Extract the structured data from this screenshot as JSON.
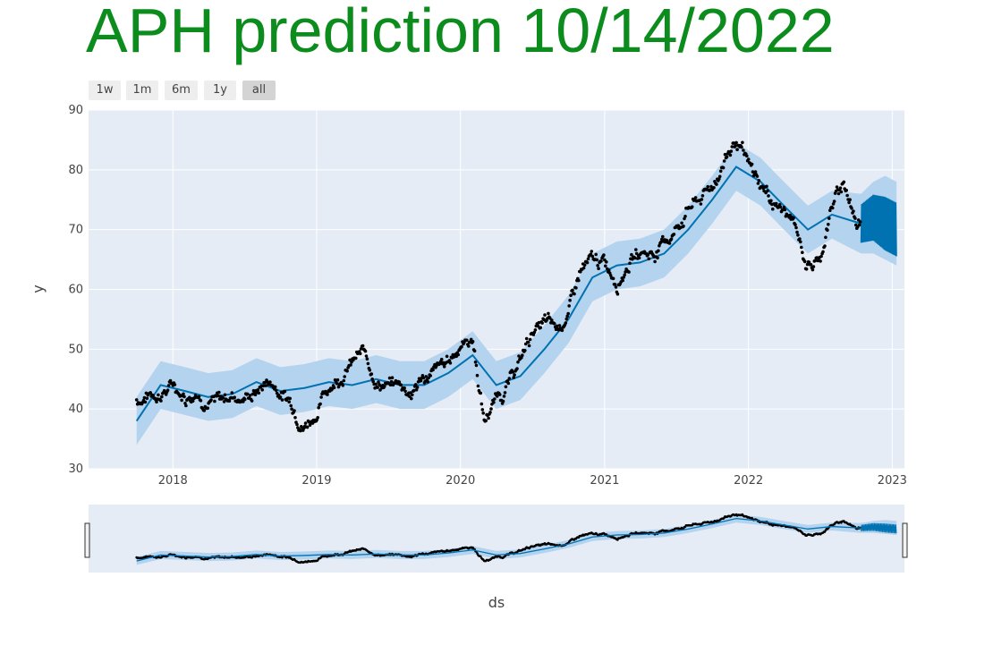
{
  "title": "APH prediction 10/14/2022",
  "range_buttons": [
    {
      "label": "1w",
      "active": false
    },
    {
      "label": "1m",
      "active": false
    },
    {
      "label": "6m",
      "active": false
    },
    {
      "label": "1y",
      "active": false
    },
    {
      "label": "all",
      "active": true
    }
  ],
  "colors": {
    "title": "#0d8c1e",
    "plot_bg": "#e5ecf6",
    "grid": "#ffffff",
    "forecast_line": "#0072b2",
    "uncertainty_band": "#b3d3ee",
    "observed_points": "#000000"
  },
  "chart_data": {
    "type": "scatter",
    "title": "APH prediction 10/14/2022",
    "xlabel": "ds",
    "ylabel": "y",
    "x_ticks": [
      "2018",
      "2019",
      "2020",
      "2021",
      "2022",
      "2023"
    ],
    "y_ticks": [
      30,
      40,
      50,
      60,
      70,
      80,
      90
    ],
    "xlim": [
      "2017-06-01",
      "2023-02-01"
    ],
    "ylim": [
      30,
      90
    ],
    "grid": true,
    "legend": "none",
    "range_slider": true,
    "forecast_start": "2022-10-14",
    "forecast_end": "2023-01-12",
    "observed": {
      "x": [
        "2017-10-01",
        "2017-11-01",
        "2017-12-01",
        "2018-01-01",
        "2018-02-01",
        "2018-03-01",
        "2018-04-01",
        "2018-05-01",
        "2018-06-01",
        "2018-07-01",
        "2018-08-01",
        "2018-09-01",
        "2018-10-01",
        "2018-11-01",
        "2018-12-01",
        "2019-01-01",
        "2019-02-01",
        "2019-03-01",
        "2019-04-01",
        "2019-05-01",
        "2019-06-01",
        "2019-07-01",
        "2019-08-01",
        "2019-09-01",
        "2019-10-01",
        "2019-11-01",
        "2019-12-01",
        "2020-01-01",
        "2020-02-01",
        "2020-03-01",
        "2020-04-01",
        "2020-05-01",
        "2020-06-01",
        "2020-07-01",
        "2020-08-01",
        "2020-09-01",
        "2020-10-01",
        "2020-11-01",
        "2020-12-01",
        "2021-01-01",
        "2021-02-01",
        "2021-03-01",
        "2021-04-01",
        "2021-05-01",
        "2021-06-01",
        "2021-07-01",
        "2021-08-01",
        "2021-09-01",
        "2021-10-01",
        "2021-11-01",
        "2021-12-01",
        "2022-01-01",
        "2022-02-01",
        "2022-03-01",
        "2022-04-01",
        "2022-05-01",
        "2022-06-01",
        "2022-07-01",
        "2022-08-01",
        "2022-09-01",
        "2022-10-01",
        "2022-10-14"
      ],
      "y": [
        41.5,
        42.5,
        43,
        44,
        42.5,
        43.5,
        42,
        41,
        42.5,
        42,
        43,
        45,
        43,
        41,
        38,
        40,
        44,
        46,
        48,
        49,
        45,
        44,
        44,
        43,
        45.5,
        46,
        47.5,
        51,
        52,
        38,
        42,
        44,
        48,
        53,
        54,
        53,
        56,
        63,
        64,
        64,
        62,
        65,
        66.5,
        66,
        68,
        70,
        74,
        75,
        77,
        82,
        85,
        80,
        77,
        75,
        73,
        70,
        64,
        65,
        74,
        78,
        71,
        72
      ]
    },
    "forecast": {
      "x": [
        "2017-10-01",
        "2017-12-01",
        "2018-02-01",
        "2018-04-01",
        "2018-06-01",
        "2018-08-01",
        "2018-10-01",
        "2018-12-01",
        "2019-02-01",
        "2019-04-01",
        "2019-06-01",
        "2019-08-01",
        "2019-10-01",
        "2019-12-01",
        "2020-02-01",
        "2020-04-01",
        "2020-06-01",
        "2020-08-01",
        "2020-10-01",
        "2020-12-01",
        "2021-02-01",
        "2021-04-01",
        "2021-06-01",
        "2021-08-01",
        "2021-10-01",
        "2021-12-01",
        "2022-02-01",
        "2022-04-01",
        "2022-06-01",
        "2022-08-01",
        "2022-10-14",
        "2022-11-14",
        "2022-12-14",
        "2023-01-12"
      ],
      "yhat": [
        38,
        44,
        43,
        42,
        42.5,
        44.5,
        43,
        43.5,
        44.5,
        44,
        45,
        44,
        44,
        46,
        49,
        44,
        45.5,
        50,
        55,
        62,
        64,
        64.5,
        66,
        70,
        75,
        80.5,
        78,
        74,
        70,
        72.5,
        71,
        72,
        71,
        70
      ],
      "yhat_lower": [
        34,
        40,
        39,
        38,
        38.5,
        40.5,
        39,
        39.5,
        40.5,
        40,
        41,
        40,
        40,
        42,
        45,
        40,
        41.5,
        46,
        51,
        58,
        60,
        60.5,
        62,
        66,
        71,
        76.5,
        74,
        70,
        66,
        68.5,
        66,
        66,
        65,
        64
      ],
      "yhat_upper": [
        42,
        48,
        47,
        46,
        46.5,
        48.5,
        47,
        47.5,
        48.5,
        48,
        49,
        48,
        48,
        50,
        53,
        48,
        49.5,
        54,
        59,
        66,
        68,
        68.5,
        70,
        74,
        79,
        84.5,
        82,
        78,
        74,
        76.5,
        76,
        78,
        79,
        78
      ]
    }
  }
}
